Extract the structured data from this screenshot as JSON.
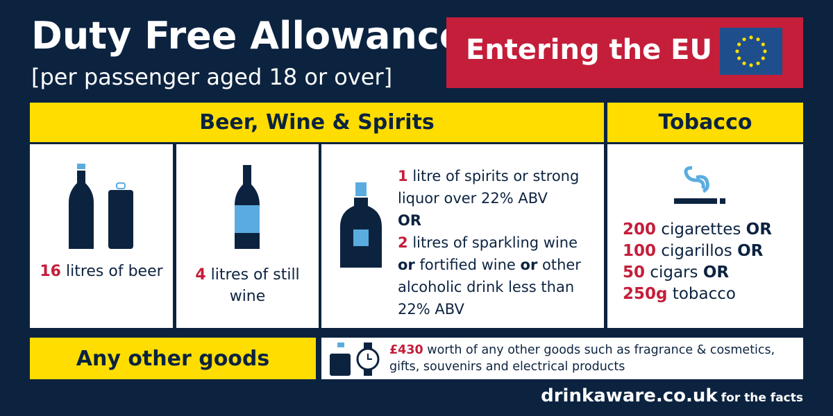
{
  "header": {
    "title": "Duty Free Allowance",
    "subtitle": "[per passenger aged 18 or over]",
    "badge": "Entering the EU"
  },
  "sections": {
    "alcohol": "Beer, Wine & Spirits",
    "tobacco": "Tobacco",
    "other": "Any other goods"
  },
  "beer": {
    "amount": "16",
    "text": "litres of beer"
  },
  "wine": {
    "amount": "4",
    "text": "litres of still wine"
  },
  "spirits": {
    "amount": "1",
    "text": "litre of spirits or strong liquor over 22% ABV",
    "or": "OR",
    "alt_amount": "2",
    "alt_text_1": "litres of sparkling wine",
    "or_1": "or",
    "alt_text_2": "fortified wine",
    "or_2": "or",
    "alt_text_3": "other alcoholic drink less than 22% ABV"
  },
  "tobacco": [
    {
      "amount": "200",
      "item": "cigarettes",
      "or": "OR"
    },
    {
      "amount": "100",
      "item": "cigarillos",
      "or": "OR"
    },
    {
      "amount": "50",
      "item": "cigars",
      "or": "OR"
    },
    {
      "amount": "250g",
      "item": "tobacco"
    }
  ],
  "other_goods": {
    "amount": "£430",
    "text": "worth of any other goods such as fragrance & cosmetics, gifts, souvenirs and electrical products"
  },
  "footer": {
    "site": "drinkaware.co.uk",
    "tagline": "for the facts"
  }
}
